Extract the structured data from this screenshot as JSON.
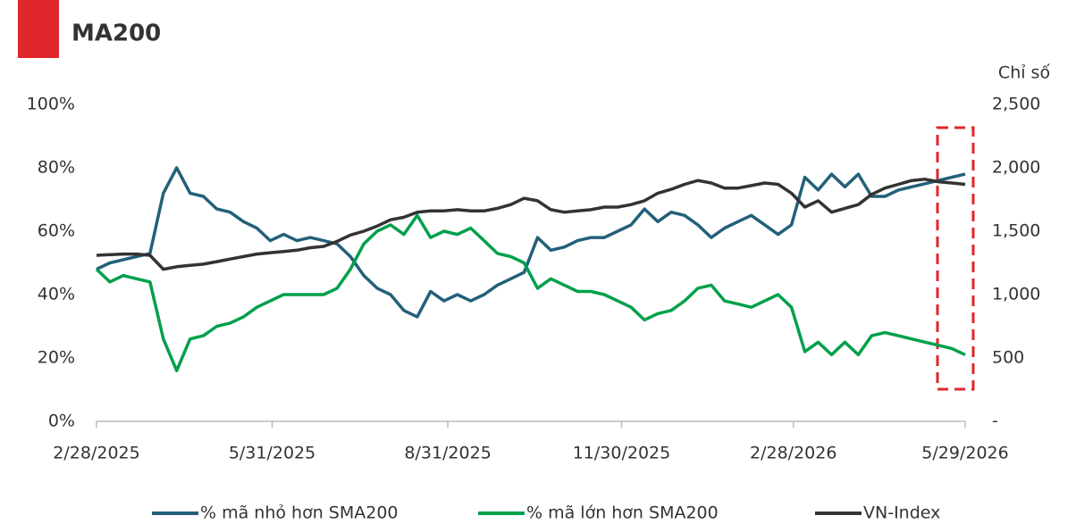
{
  "chart_data": {
    "type": "line",
    "title": "MA200",
    "y2label": "Chỉ số",
    "x": [
      "2/28/2025",
      "3/7/2025",
      "3/14/2025",
      "3/21/2025",
      "3/28/2025",
      "4/4/2025",
      "4/11/2025",
      "4/18/2025",
      "4/25/2025",
      "5/2/2025",
      "5/9/2025",
      "5/16/2025",
      "5/23/2025",
      "5/30/2025",
      "6/6/2025",
      "6/13/2025",
      "6/20/2025",
      "6/27/2025",
      "7/4/2025",
      "7/11/2025",
      "7/18/2025",
      "7/25/2025",
      "8/1/2025",
      "8/8/2025",
      "8/15/2025",
      "8/22/2025",
      "8/29/2025",
      "9/5/2025",
      "9/12/2025",
      "9/19/2025",
      "9/26/2025",
      "10/3/2025",
      "10/10/2025",
      "10/17/2025",
      "10/24/2025",
      "10/31/2025",
      "11/7/2025",
      "11/14/2025",
      "11/21/2025",
      "11/28/2025",
      "12/5/2025",
      "12/12/2025",
      "12/19/2025",
      "12/26/2025",
      "1/2/2026",
      "1/9/2026",
      "1/16/2026",
      "1/23/2026",
      "1/30/2026",
      "2/6/2026",
      "2/13/2026",
      "2/20/2026",
      "2/27/2026",
      "3/6/2026",
      "3/13/2026",
      "3/20/2026",
      "3/27/2026",
      "4/3/2026",
      "4/10/2026",
      "4/17/2026",
      "4/24/2026",
      "5/1/2026",
      "5/8/2026",
      "5/15/2026",
      "5/22/2026",
      "5/29/2026"
    ],
    "series": [
      {
        "name": "% mã nhỏ hơn SMA200",
        "color": "#236079",
        "values": [
          48,
          50,
          51,
          52,
          53,
          72,
          80,
          72,
          71,
          67,
          66,
          63,
          61,
          57,
          59,
          57,
          58,
          57,
          56,
          52,
          46,
          42,
          40,
          35,
          33,
          41,
          38,
          40,
          38,
          40,
          43,
          45,
          47,
          58,
          54,
          55,
          57,
          58,
          58,
          60,
          62,
          67,
          63,
          66,
          65,
          62,
          58,
          61,
          63,
          65,
          62,
          59,
          62,
          77,
          73,
          78,
          74,
          78,
          71,
          71,
          73,
          74,
          75,
          76,
          77,
          78
        ]
      },
      {
        "name": "% mã lớn hơn SMA200",
        "color": "#00a04b",
        "values": [
          48,
          44,
          46,
          45,
          44,
          26,
          16,
          26,
          27,
          30,
          31,
          33,
          36,
          38,
          40,
          40,
          40,
          40,
          42,
          48,
          56,
          60,
          62,
          59,
          65,
          58,
          60,
          59,
          61,
          57,
          53,
          52,
          50,
          42,
          45,
          43,
          41,
          41,
          40,
          38,
          36,
          32,
          34,
          35,
          38,
          42,
          43,
          38,
          37,
          36,
          38,
          40,
          36,
          22,
          25,
          21,
          25,
          21,
          27,
          28,
          27,
          26,
          25,
          24,
          23,
          21
        ]
      },
      {
        "name": "VN-Index",
        "color": "#333333",
        "axis": "y2",
        "values": [
          1310,
          1315,
          1320,
          1320,
          1310,
          1200,
          1220,
          1230,
          1240,
          1260,
          1280,
          1300,
          1320,
          1330,
          1340,
          1350,
          1370,
          1380,
          1420,
          1470,
          1500,
          1540,
          1590,
          1610,
          1650,
          1660,
          1660,
          1670,
          1660,
          1660,
          1680,
          1710,
          1760,
          1740,
          1670,
          1650,
          1660,
          1670,
          1690,
          1690,
          1710,
          1740,
          1800,
          1830,
          1870,
          1900,
          1880,
          1840,
          1840,
          1860,
          1880,
          1870,
          1800,
          1690,
          1740,
          1650,
          1680,
          1710,
          1790,
          1840,
          1870,
          1900,
          1910,
          1890,
          1880,
          1870
        ]
      }
    ],
    "xlim": [
      "2/28/2025",
      "5/29/2026"
    ],
    "xticks": [
      "2/28/2025",
      "5/31/2025",
      "8/31/2025",
      "11/30/2025",
      "2/28/2026",
      "5/29/2026"
    ],
    "ylim": [
      0,
      100
    ],
    "yticks": [
      {
        "value": 0,
        "label": "0%"
      },
      {
        "value": 20,
        "label": "20%"
      },
      {
        "value": 40,
        "label": "40%"
      },
      {
        "value": 60,
        "label": "60%"
      },
      {
        "value": 80,
        "label": "80%"
      },
      {
        "value": 100,
        "label": "100%"
      }
    ],
    "y2lim": [
      0,
      2500
    ],
    "y2ticks": [
      {
        "value": 0,
        "label": "-"
      },
      {
        "value": 500,
        "label": "500"
      },
      {
        "value": 1000,
        "label": "1,000"
      },
      {
        "value": 1500,
        "label": "1,500"
      },
      {
        "value": 2000,
        "label": "2,000"
      },
      {
        "value": 2500,
        "label": "2,500"
      }
    ],
    "legend": "bottom"
  }
}
